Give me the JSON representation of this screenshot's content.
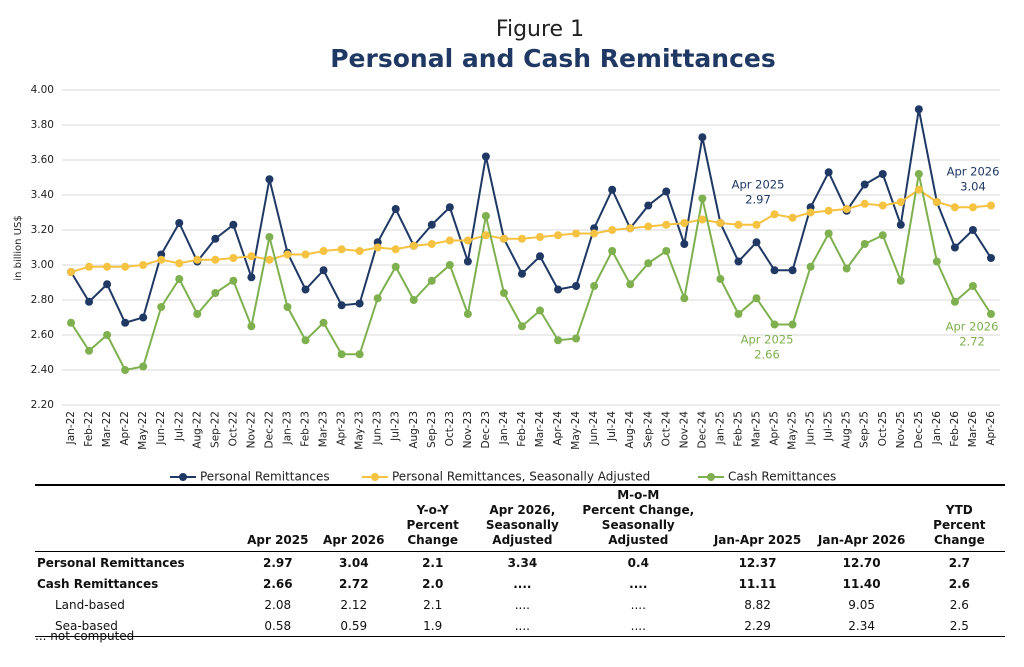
{
  "chart_data": {
    "type": "line",
    "subtitle": "Figure 1",
    "title": "Personal and Cash Remittances",
    "y_label": "in billion US$",
    "categories": [
      "Jan-22",
      "Feb-22",
      "Mar-22",
      "Apr-22",
      "May-22",
      "Jun-22",
      "Jul-22",
      "Aug-22",
      "Sep-22",
      "Oct-22",
      "Nov-22",
      "Dec-22",
      "Jan-23",
      "Feb-23",
      "Mar-23",
      "Apr-23",
      "May-23",
      "Jun-23",
      "Jul-23",
      "Aug-23",
      "Sep-23",
      "Oct-23",
      "Nov-23",
      "Dec-23",
      "Jan-24",
      "Feb-24",
      "Mar-24",
      "Apr-24",
      "May-24",
      "Jun-24",
      "Jul-24",
      "Aug-24",
      "Sep-24",
      "Oct-24",
      "Nov-24",
      "Dec-24",
      "Jan-25",
      "Feb-25",
      "Mar-25",
      "Apr-25",
      "May-25",
      "Jun-25",
      "Jul-25",
      "Aug-25",
      "Sep-25",
      "Oct-25",
      "Nov-25",
      "Dec-25",
      "Jan-26",
      "Feb-26",
      "Mar-26",
      "Apr-26"
    ],
    "series": [
      {
        "name": "Personal Remittances",
        "color": "#1f3864",
        "values": [
          2.96,
          2.79,
          2.89,
          2.67,
          2.7,
          3.06,
          3.24,
          3.02,
          3.15,
          3.23,
          2.93,
          3.49,
          3.07,
          2.86,
          2.97,
          2.77,
          2.78,
          3.13,
          3.32,
          3.11,
          3.23,
          3.33,
          3.02,
          3.62,
          3.15,
          2.95,
          3.05,
          2.86,
          2.88,
          3.21,
          3.43,
          3.21,
          3.34,
          3.42,
          3.12,
          3.73,
          3.24,
          3.02,
          3.13,
          2.97,
          2.97,
          3.33,
          3.53,
          3.31,
          3.46,
          3.52,
          3.23,
          3.89,
          3.36,
          3.1,
          3.2,
          3.04
        ]
      },
      {
        "name": "Personal Remittances, Seasonally Adjusted",
        "color": "#f5c242",
        "values": [
          2.96,
          2.99,
          2.99,
          2.99,
          3.0,
          3.03,
          3.01,
          3.03,
          3.03,
          3.04,
          3.05,
          3.03,
          3.06,
          3.06,
          3.08,
          3.09,
          3.08,
          3.1,
          3.09,
          3.11,
          3.12,
          3.14,
          3.14,
          3.17,
          3.15,
          3.15,
          3.16,
          3.17,
          3.18,
          3.18,
          3.2,
          3.21,
          3.22,
          3.23,
          3.24,
          3.26,
          3.24,
          3.23,
          3.23,
          3.29,
          3.27,
          3.3,
          3.31,
          3.32,
          3.35,
          3.34,
          3.36,
          3.43,
          3.36,
          3.33,
          3.33,
          3.34
        ]
      },
      {
        "name": "Cash Remittances",
        "color": "#7fb04f",
        "values": [
          2.67,
          2.51,
          2.6,
          2.4,
          2.42,
          2.76,
          2.92,
          2.72,
          2.84,
          2.91,
          2.65,
          3.16,
          2.76,
          2.57,
          2.67,
          2.49,
          2.49,
          2.81,
          2.99,
          2.8,
          2.91,
          3.0,
          2.72,
          3.28,
          2.84,
          2.65,
          2.74,
          2.57,
          2.58,
          2.88,
          3.08,
          2.89,
          3.01,
          3.08,
          2.81,
          3.38,
          2.92,
          2.72,
          2.81,
          2.66,
          2.66,
          2.99,
          3.18,
          2.98,
          3.12,
          3.17,
          2.91,
          3.52,
          3.02,
          2.79,
          2.88,
          2.72
        ]
      }
    ],
    "ylim": [
      2.2,
      4.0
    ],
    "yticks": [
      {
        "value": 2.2,
        "label": "2.20"
      },
      {
        "value": 2.4,
        "label": "2.40"
      },
      {
        "value": 2.6,
        "label": "2.60"
      },
      {
        "value": 2.8,
        "label": "2.80"
      },
      {
        "value": 3.0,
        "label": "3.00"
      },
      {
        "value": 3.2,
        "label": "3.20"
      },
      {
        "value": 3.4,
        "label": "3.40"
      },
      {
        "value": 3.6,
        "label": "3.60"
      },
      {
        "value": 3.8,
        "label": "3.80"
      },
      {
        "value": 4.0,
        "label": "4.00"
      }
    ],
    "grid": true,
    "annotations": [
      {
        "text": "Apr 2025",
        "value": 2.97,
        "color": "#1f3864"
      },
      {
        "text": "Apr 2026",
        "value": 3.04,
        "color": "#1f3864"
      },
      {
        "text": "Apr 2025",
        "value": 2.66,
        "color": "#7fb04f"
      },
      {
        "text": "Apr 2026",
        "value": 2.72,
        "color": "#7fb04f"
      }
    ]
  },
  "table": {
    "header": [
      [],
      [
        "Apr 2025"
      ],
      [
        "Apr 2026"
      ],
      [
        "Y-o-Y",
        "Percent",
        "Change"
      ],
      [
        "Apr 2026,",
        "Seasonally",
        "Adjusted"
      ],
      [
        "M-o-M",
        "Percent Change,",
        "Seasonally Adjusted"
      ],
      [
        "Jan-Apr 2025"
      ],
      [
        "Jan-Apr 2026"
      ],
      [
        "YTD",
        "Percent",
        "Change"
      ]
    ],
    "rows": [
      {
        "bold": true,
        "indent": false,
        "cells": [
          "Personal Remittances",
          "2.97",
          "3.04",
          "2.1",
          "3.34",
          "0.4",
          "12.37",
          "12.70",
          "2.7"
        ]
      },
      {
        "bold": true,
        "indent": false,
        "cells": [
          "Cash Remittances",
          "2.66",
          "2.72",
          "2.0",
          "....",
          "....",
          "11.11",
          "11.40",
          "2.6"
        ]
      },
      {
        "bold": false,
        "indent": true,
        "cells": [
          "Land-based",
          "2.08",
          "2.12",
          "2.1",
          "....",
          "....",
          "8.82",
          "9.05",
          "2.6"
        ]
      },
      {
        "bold": false,
        "indent": true,
        "cells": [
          "Sea-based",
          "0.58",
          "0.59",
          "1.9",
          "....",
          "....",
          "2.29",
          "2.34",
          "2.5"
        ]
      }
    ],
    "footnote": "... not computed"
  }
}
